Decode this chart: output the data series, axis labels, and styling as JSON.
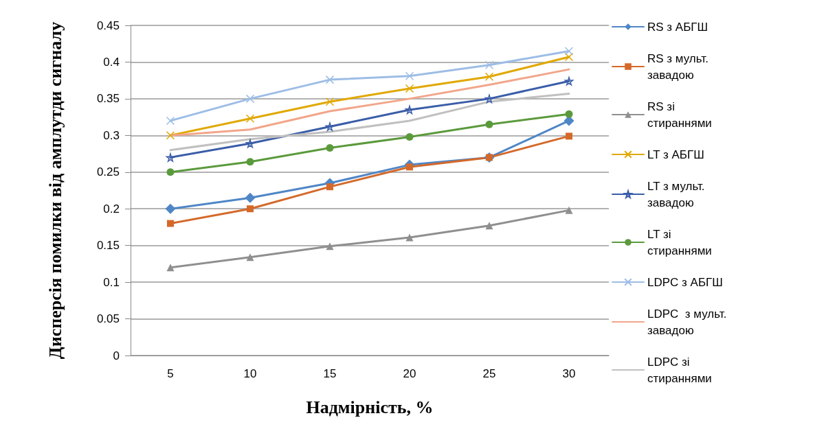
{
  "chart_data": {
    "type": "line",
    "xlabel": "Надмірність, %",
    "ylabel": "Дисперсія помилки від амплутди сигналу",
    "categories": [
      "5",
      "10",
      "15",
      "20",
      "25",
      "30"
    ],
    "ylim": [
      0,
      0.45
    ],
    "yticks": [
      0,
      0.05,
      0.1,
      0.15,
      0.2,
      0.25,
      0.3,
      0.35,
      0.4,
      0.45
    ],
    "grid": "y",
    "legend": "right",
    "line_style": "solid",
    "series": [
      {
        "name": "RS з АБГШ",
        "color": "#4f86c6",
        "marker": "diamond",
        "values": [
          0.2,
          0.215,
          0.235,
          0.26,
          0.27,
          0.32
        ]
      },
      {
        "name": "RS з мульт. завадою",
        "color": "#d4692a",
        "marker": "square",
        "values": [
          0.18,
          0.2,
          0.23,
          0.257,
          0.27,
          0.299
        ]
      },
      {
        "name": "RS зі стираннями",
        "color": "#8f8f8f",
        "marker": "triangle",
        "values": [
          0.12,
          0.134,
          0.149,
          0.161,
          0.177,
          0.198
        ]
      },
      {
        "name": "LT з АБГШ",
        "color": "#e0a800",
        "marker": "cross",
        "values": [
          0.3,
          0.323,
          0.346,
          0.364,
          0.38,
          0.407
        ]
      },
      {
        "name": "LT з мульт. завадою",
        "color": "#3a5da8",
        "marker": "star",
        "values": [
          0.27,
          0.289,
          0.312,
          0.335,
          0.35,
          0.374
        ]
      },
      {
        "name": "LT зі стираннями",
        "color": "#5b9a3c",
        "marker": "circle",
        "values": [
          0.25,
          0.264,
          0.283,
          0.298,
          0.315,
          0.329
        ]
      },
      {
        "name": "LDPC з АБГШ",
        "color": "#9dbde6",
        "marker": "cross",
        "values": [
          0.32,
          0.35,
          0.376,
          0.381,
          0.396,
          0.415
        ]
      },
      {
        "name": "LDPC  з мульт. завадою",
        "color": "#f2a58a",
        "marker": "none",
        "values": [
          0.3,
          0.308,
          0.333,
          0.35,
          0.369,
          0.39
        ]
      },
      {
        "name": "LDPC зі стираннями",
        "color": "#c0c0c0",
        "marker": "none",
        "values": [
          0.28,
          0.295,
          0.305,
          0.32,
          0.346,
          0.357
        ]
      }
    ]
  }
}
